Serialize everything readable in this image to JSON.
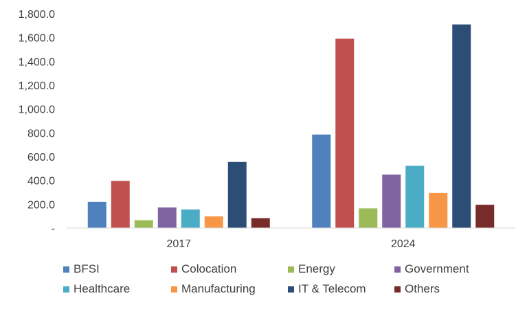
{
  "chart_data": {
    "type": "bar",
    "categories": [
      "2017",
      "2024"
    ],
    "series": [
      {
        "name": "BFSI",
        "color": "#4F81BD",
        "values": [
          220,
          785
        ]
      },
      {
        "name": "Colocation",
        "color": "#C0504D",
        "values": [
          395,
          1590
        ]
      },
      {
        "name": "Energy",
        "color": "#9BBB59",
        "values": [
          65,
          165
        ]
      },
      {
        "name": "Government",
        "color": "#8064A2",
        "values": [
          172,
          448
        ]
      },
      {
        "name": "Healthcare",
        "color": "#4BACC6",
        "values": [
          155,
          522
        ]
      },
      {
        "name": "Manufacturing",
        "color": "#F79646",
        "values": [
          97,
          295
        ]
      },
      {
        "name": "IT & Telecom",
        "color": "#2C4D75",
        "values": [
          555,
          1710
        ]
      },
      {
        "name": "Others",
        "color": "#772C2A",
        "values": [
          82,
          195
        ]
      }
    ],
    "y_ticks": [
      0,
      200,
      400,
      600,
      800,
      1000,
      1200,
      1400,
      1600,
      1800
    ],
    "y_tick_labels": [
      "-",
      "200.0",
      "400.0",
      "600.0",
      "800.0",
      "1,000.0",
      "1,200.0",
      "1,400.0",
      "1,600.0",
      "1,800.0"
    ],
    "ylim": [
      0,
      1800
    ],
    "title": "",
    "xlabel": "",
    "ylabel": "",
    "grid": false,
    "legend_position": "bottom"
  }
}
